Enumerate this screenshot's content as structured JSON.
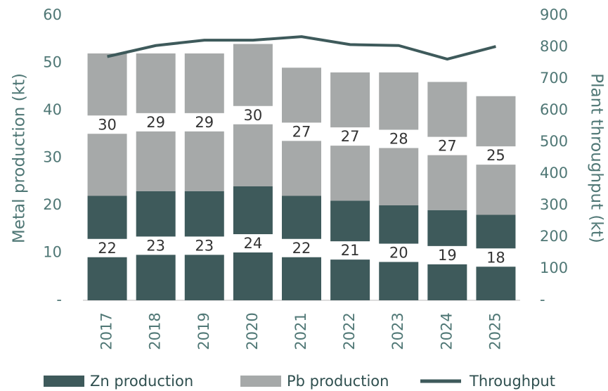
{
  "chart_data": {
    "type": "bar",
    "stacked": true,
    "y_label": "Metal production (kt)",
    "y2_label": "Plant throughput (kt)",
    "categories": [
      "2017",
      "2018",
      "2019",
      "2020",
      "2021",
      "2022",
      "2023",
      "2024",
      "2025"
    ],
    "series": [
      {
        "name": "Zn production",
        "color": "#3e5a5b",
        "values": [
          22,
          23,
          23,
          24,
          22,
          21,
          20,
          19,
          18
        ]
      },
      {
        "name": "Pb production",
        "color": "#a6a9a9",
        "values": [
          30,
          29,
          29,
          30,
          27,
          27,
          28,
          27,
          25
        ]
      },
      {
        "name": "Throughput",
        "color": "#3e5a5b",
        "type": "line",
        "axis": "y2",
        "values": [
          770,
          805,
          822,
          822,
          833,
          808,
          805,
          762,
          802
        ]
      }
    ],
    "ylim": [
      0,
      60
    ],
    "yticks": [
      {
        "value": 0,
        "label": "-"
      },
      10,
      20,
      30,
      40,
      50,
      60
    ],
    "y2lim": [
      0,
      900
    ],
    "y2ticks": [
      {
        "value": 0,
        "label": "-"
      },
      100,
      200,
      300,
      400,
      500,
      600,
      700,
      800,
      900
    ],
    "grid": false
  }
}
